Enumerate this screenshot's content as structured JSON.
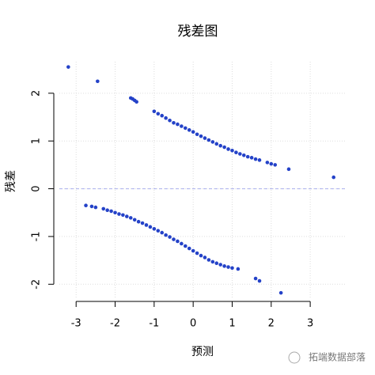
{
  "chart_data": {
    "type": "scatter",
    "title": "残差图",
    "x_label": "预测",
    "y_label": "残差",
    "x": [
      -3.2,
      -2.45,
      3.6,
      -1.6,
      -1.55,
      -1.5,
      -1.45,
      -1.0,
      -0.9,
      -0.8,
      -0.7,
      -0.6,
      -0.5,
      -0.4,
      -0.3,
      -0.2,
      -0.1,
      0,
      0.1,
      0.2,
      0.3,
      0.4,
      0.5,
      0.6,
      0.7,
      0.8,
      0.9,
      1.0,
      1.1,
      1.2,
      1.3,
      1.4,
      1.5,
      1.6,
      1.7,
      1.9,
      2.0,
      2.1,
      2.45,
      -2.75,
      -2.6,
      -2.5,
      -2.3,
      -2.2,
      -2.1,
      -2.0,
      -1.9,
      -1.8,
      -1.7,
      -1.6,
      -1.5,
      -1.4,
      -1.3,
      -1.2,
      -1.1,
      -1.0,
      -0.9,
      -0.8,
      -0.7,
      -0.6,
      -0.5,
      -0.4,
      -0.3,
      -0.2,
      -0.1,
      0,
      0.1,
      0.2,
      0.3,
      0.4,
      0.5,
      0.6,
      0.7,
      0.8,
      0.9,
      1.0,
      1.15,
      1.6,
      1.7,
      2.25
    ],
    "values": [
      2.55,
      2.25,
      0.24,
      1.9,
      1.88,
      1.85,
      1.82,
      1.62,
      1.57,
      1.53,
      1.48,
      1.43,
      1.38,
      1.35,
      1.31,
      1.27,
      1.23,
      1.19,
      1.14,
      1.1,
      1.06,
      1.02,
      0.98,
      0.94,
      0.9,
      0.87,
      0.83,
      0.8,
      0.76,
      0.73,
      0.7,
      0.67,
      0.65,
      0.62,
      0.6,
      0.55,
      0.52,
      0.5,
      0.41,
      -0.35,
      -0.37,
      -0.39,
      -0.42,
      -0.45,
      -0.47,
      -0.5,
      -0.53,
      -0.55,
      -0.58,
      -0.61,
      -0.65,
      -0.69,
      -0.72,
      -0.76,
      -0.8,
      -0.84,
      -0.88,
      -0.92,
      -0.97,
      -1.01,
      -1.06,
      -1.1,
      -1.15,
      -1.2,
      -1.25,
      -1.3,
      -1.35,
      -1.4,
      -1.44,
      -1.49,
      -1.53,
      -1.56,
      -1.59,
      -1.62,
      -1.64,
      -1.66,
      -1.68,
      -1.88,
      -1.93,
      -2.18
    ],
    "color": "#2442c8",
    "xlim": [
      -3.43,
      3.91
    ],
    "ylim": [
      -2.31,
      2.66
    ],
    "xticks": [
      -3,
      -2,
      -1,
      0,
      1,
      2,
      3
    ],
    "yticks": [
      -2,
      -1,
      0,
      1,
      2
    ],
    "grid": true,
    "hline": 0,
    "watermark": "拓端数据部落"
  }
}
